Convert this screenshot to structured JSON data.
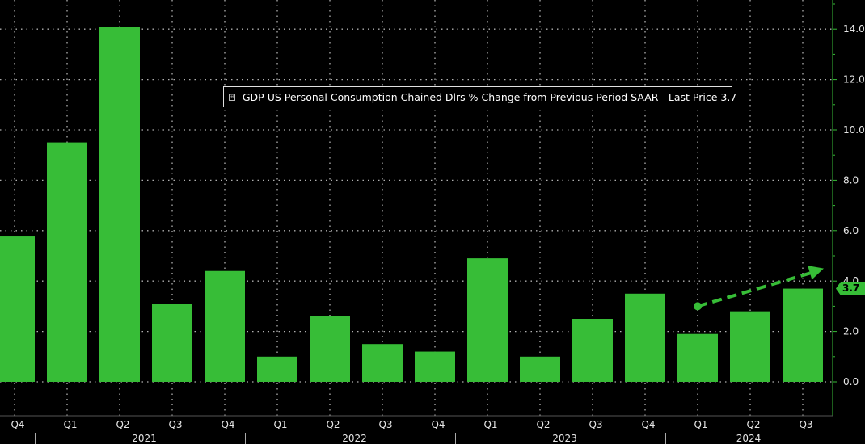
{
  "chart_data": {
    "type": "bar",
    "categories": [
      "Q4",
      "Q1",
      "Q2",
      "Q3",
      "Q4",
      "Q1",
      "Q2",
      "Q3",
      "Q4",
      "Q1",
      "Q2",
      "Q3",
      "Q4",
      "Q1",
      "Q2",
      "Q3"
    ],
    "years": [
      {
        "label": "2021",
        "span": [
          1,
          4
        ]
      },
      {
        "label": "2022",
        "span": [
          5,
          8
        ]
      },
      {
        "label": "2023",
        "span": [
          9,
          12
        ]
      },
      {
        "label": "2024",
        "span": [
          13,
          15
        ]
      }
    ],
    "series": [
      {
        "name": "GDP US Personal Consumption Chained Dlrs % Change from Previous Period SAAR - Last Price 3.7",
        "values": [
          5.8,
          9.5,
          14.1,
          3.1,
          4.4,
          1.0,
          2.6,
          1.5,
          1.2,
          4.9,
          1.0,
          2.5,
          3.5,
          1.9,
          2.8,
          3.7
        ]
      }
    ],
    "ylim": [
      -1.4,
      15.2
    ],
    "yticks": [
      "0.0",
      "2.0",
      "4.0",
      "6.0",
      "8.0",
      "10.0",
      "12.0",
      "14.0"
    ],
    "ytick_values": [
      0,
      2,
      4,
      6,
      8,
      10,
      12,
      14
    ],
    "grid": true,
    "legend_position": "top-center",
    "last_price_label": "3.7",
    "annotation": {
      "type": "dashed-arrow",
      "from": {
        "category_index": 13,
        "value": 3.0
      },
      "to": {
        "category_index": 15.4,
        "value": 4.5
      }
    },
    "colors": {
      "bar": "#37bd37",
      "background": "#000000",
      "grid": "#b0b0b0",
      "axis": "#37bd37",
      "text": "#e6e6e6"
    }
  },
  "legend": {
    "expander": "⊞",
    "label": "GDP US Personal Consumption Chained Dlrs % Change from Previous Period SAAR - Last Price 3.7"
  }
}
